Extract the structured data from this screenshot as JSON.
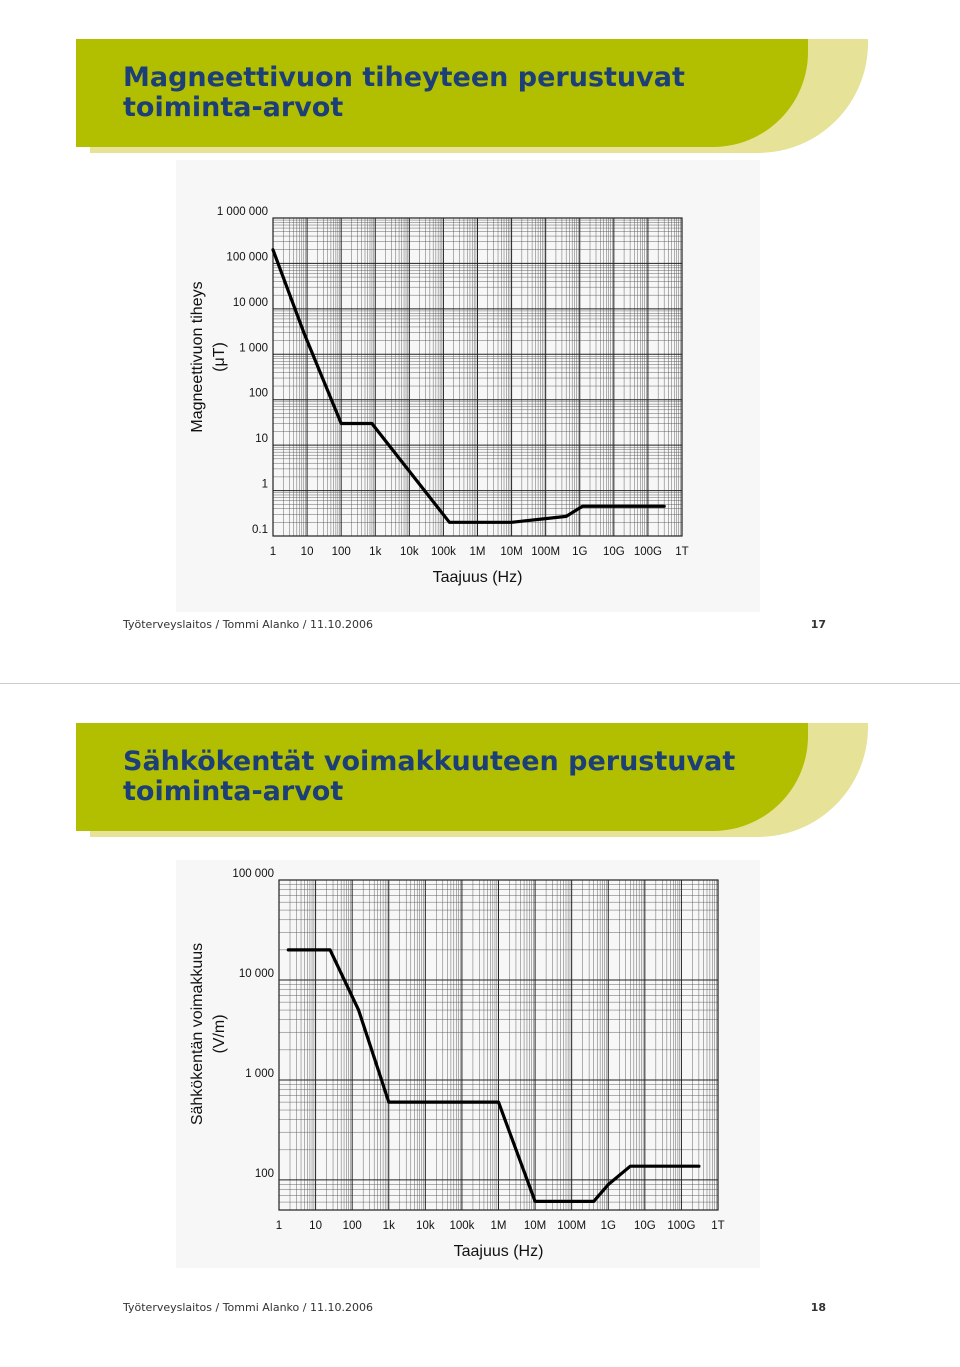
{
  "slides": [
    {
      "title_line1": "Magneettivuon tiheyteen perustuvat",
      "title_line2": "toiminta-arvot",
      "footer": "Työterveyslaitos / Tommi Alanko / 11.10.2006",
      "page_number": "17"
    },
    {
      "title_line1": "Sähkökentät voimakkuuteen perustuvat",
      "title_line2": "toiminta-arvot",
      "footer": "Työterveyslaitos / Tommi Alanko / 11.10.2006",
      "page_number": "18"
    }
  ],
  "colors": {
    "banner": "#b2be00",
    "banner_shadow": "#e6e297",
    "title_text": "#1c3f78",
    "curve": "#000000",
    "grid": "#555555"
  },
  "chart_data": [
    {
      "type": "line",
      "title": "",
      "xlabel": "Taajuus (Hz)",
      "ylabel_line1": "Magneettivuon tiheys",
      "ylabel_line2": "(μT)",
      "x_scale": "log",
      "y_scale": "log",
      "xlim": [
        1,
        1000000000000
      ],
      "ylim": [
        0.1,
        1000000
      ],
      "x_ticks": [
        1,
        10,
        100,
        1000,
        10000,
        100000,
        1000000,
        10000000,
        100000000,
        1000000000,
        10000000000,
        100000000000,
        1000000000000
      ],
      "x_tick_labels": [
        "1",
        "10",
        "100",
        "1k",
        "10k",
        "100k",
        "1M",
        "10M",
        "100M",
        "1G",
        "10G",
        "100G",
        "1T"
      ],
      "y_ticks": [
        0.1,
        1,
        10,
        100,
        1000,
        10000,
        100000,
        1000000
      ],
      "y_tick_labels": [
        "0.1",
        "1",
        "10",
        "100",
        "1 000",
        "10 000",
        "100 000",
        "1 000 000"
      ],
      "grid": true,
      "series": [
        {
          "x": [
            1,
            8,
            100,
            800,
            150000,
            10000000,
            400000000,
            1200000000,
            300000000000
          ],
          "y": [
            200000,
            3000,
            30,
            30,
            0.2,
            0.2,
            0.27,
            0.45,
            0.45
          ]
        }
      ]
    },
    {
      "type": "line",
      "title": "",
      "xlabel": "Taajuus (Hz)",
      "ylabel_line1": "Sähkökentän voimakkuus",
      "ylabel_line2": "(V/m)",
      "x_scale": "log",
      "y_scale": "log",
      "xlim": [
        1,
        1000000000000
      ],
      "ylim": [
        50,
        100000
      ],
      "x_ticks": [
        1,
        10,
        100,
        1000,
        10000,
        100000,
        1000000,
        10000000,
        100000000,
        1000000000,
        10000000000,
        100000000000,
        1000000000000
      ],
      "x_tick_labels": [
        "1",
        "10",
        "100",
        "1k",
        "10k",
        "100k",
        "1M",
        "10M",
        "100M",
        "1G",
        "10G",
        "100G",
        "1T"
      ],
      "y_ticks": [
        100,
        1000,
        10000,
        100000
      ],
      "y_tick_labels": [
        "100",
        "1 000",
        "10 000",
        "100 000"
      ],
      "grid": true,
      "series": [
        {
          "x": [
            1.8,
            25,
            150,
            1000,
            1000000,
            10000000,
            400000000,
            1000000000,
            4000000000,
            300000000000
          ],
          "y": [
            20000,
            20000,
            5000,
            600,
            600,
            61,
            61,
            90,
            137,
            137
          ]
        }
      ]
    }
  ]
}
